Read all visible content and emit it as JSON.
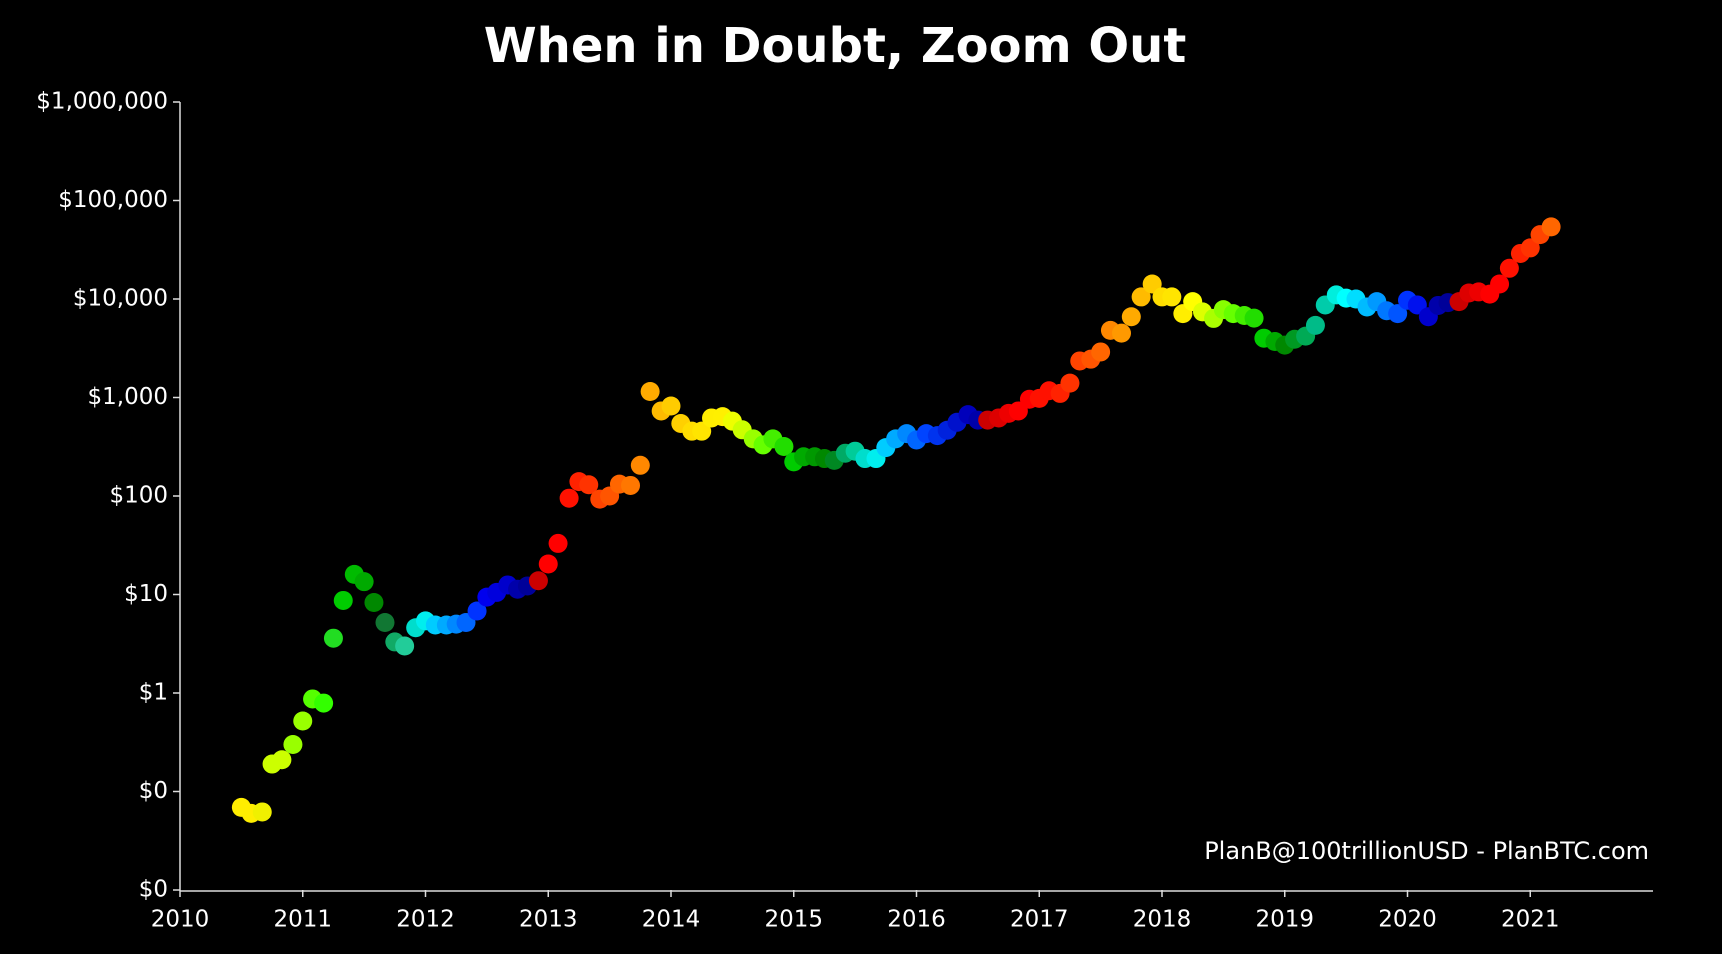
{
  "chart_data": {
    "type": "scatter",
    "title": "When in Doubt, Zoom Out",
    "annotation": "PlanB@100trillionUSD - PlanBTC.com",
    "log_y": true,
    "xlim": [
      2010,
      2022
    ],
    "ylim": [
      0.01,
      1000000
    ],
    "xticks": [
      2010,
      2011,
      2012,
      2013,
      2014,
      2015,
      2016,
      2017,
      2018,
      2019,
      2020,
      2021
    ],
    "yticks": [
      {
        "value": 0.01,
        "label": "$0"
      },
      {
        "value": 0.1,
        "label": "$0"
      },
      {
        "value": 1,
        "label": "$1"
      },
      {
        "value": 10,
        "label": "$10"
      },
      {
        "value": 100,
        "label": "$100"
      },
      {
        "value": 1000,
        "label": "$1,000"
      },
      {
        "value": 10000,
        "label": "$10,000"
      },
      {
        "value": 100000,
        "label": "$100,000"
      },
      {
        "value": 1000000,
        "label": "$1,000,000"
      }
    ],
    "x": [
      2010.5,
      2010.58,
      2010.67,
      2010.75,
      2010.83,
      2010.92,
      2011,
      2011.08,
      2011.17,
      2011.25,
      2011.33,
      2011.42,
      2011.5,
      2011.58,
      2011.67,
      2011.75,
      2011.83,
      2011.92,
      2012,
      2012.08,
      2012.17,
      2012.25,
      2012.33,
      2012.42,
      2012.5,
      2012.58,
      2012.67,
      2012.75,
      2012.83,
      2012.92,
      2013,
      2013.08,
      2013.17,
      2013.25,
      2013.33,
      2013.42,
      2013.5,
      2013.58,
      2013.67,
      2013.75,
      2013.83,
      2013.92,
      2014,
      2014.08,
      2014.17,
      2014.25,
      2014.33,
      2014.42,
      2014.5,
      2014.58,
      2014.67,
      2014.75,
      2014.83,
      2014.92,
      2015,
      2015.08,
      2015.17,
      2015.25,
      2015.33,
      2015.42,
      2015.5,
      2015.58,
      2015.67,
      2015.75,
      2015.83,
      2015.92,
      2016,
      2016.08,
      2016.17,
      2016.25,
      2016.33,
      2016.42,
      2016.5,
      2016.58,
      2016.67,
      2016.75,
      2016.83,
      2016.92,
      2017,
      2017.08,
      2017.17,
      2017.25,
      2017.33,
      2017.42,
      2017.5,
      2017.58,
      2017.67,
      2017.75,
      2017.83,
      2017.92,
      2018,
      2018.08,
      2018.17,
      2018.25,
      2018.33,
      2018.42,
      2018.5,
      2018.58,
      2018.67,
      2018.75,
      2018.83,
      2018.92,
      2019,
      2019.08,
      2019.17,
      2019.25,
      2019.33,
      2019.42,
      2019.5,
      2019.58,
      2019.67,
      2019.75,
      2019.83,
      2019.92,
      2020,
      2020.08,
      2020.17,
      2020.25,
      2020.33,
      2020.42,
      2020.5,
      2020.58,
      2020.67,
      2020.75,
      2020.83,
      2020.92,
      2021,
      2021.08,
      2021.17
    ],
    "values": [
      0.069,
      0.06,
      0.062,
      0.19,
      0.21,
      0.3,
      0.52,
      0.87,
      0.79,
      3.6,
      8.7,
      16,
      13.5,
      8.3,
      5.2,
      3.3,
      3.0,
      4.6,
      5.4,
      4.9,
      4.9,
      5.0,
      5.2,
      6.8,
      9.4,
      10.5,
      12.5,
      11.3,
      12.2,
      13.8,
      20.4,
      33,
      95,
      140,
      130,
      93,
      100,
      132,
      128,
      205,
      1150,
      730,
      820,
      545,
      455,
      455,
      620,
      640,
      575,
      470,
      380,
      330,
      380,
      318,
      222,
      250,
      250,
      240,
      230,
      272,
      285,
      240,
      240,
      310,
      380,
      430,
      370,
      430,
      410,
      465,
      560,
      670,
      590,
      590,
      620,
      690,
      730,
      960,
      980,
      1170,
      1100,
      1400,
      2350,
      2450,
      2900,
      4800,
      4500,
      6600,
      10500,
      14200,
      10500,
      10500,
      7100,
      9400,
      7400,
      6350,
      7800,
      7100,
      6800,
      6400,
      4000,
      3700,
      3400,
      3900,
      4200,
      5400,
      8700,
      11000,
      10200,
      10000,
      8300,
      9400,
      7600,
      7100,
      9700,
      8700,
      6600,
      8600,
      9200,
      9400,
      11500,
      11800,
      11200,
      14200,
      20500,
      29000,
      33000,
      45000,
      54000
    ],
    "colors": [
      "#ffee00",
      "#ffee00",
      "#f0f000",
      "#ccff00",
      "#ccff00",
      "#99ff00",
      "#99ff00",
      "#55ff00",
      "#33ff00",
      "#22dd22",
      "#00cc00",
      "#00bb00",
      "#00aa00",
      "#008800",
      "#117733",
      "#11aa66",
      "#22cc99",
      "#00ddcc",
      "#00eeee",
      "#00ccff",
      "#00aaff",
      "#0088ff",
      "#0066ff",
      "#0033ff",
      "#0000ee",
      "#0000dd",
      "#0000cc",
      "#0000aa",
      "#000099",
      "#cc0000",
      "#ff0000",
      "#ff0000",
      "#ff1100",
      "#ff2200",
      "#ff3300",
      "#ff4400",
      "#ff5500",
      "#ff6600",
      "#ff7700",
      "#ff8800",
      "#ffaa00",
      "#ffbb00",
      "#ffcc00",
      "#ffd000",
      "#ffdd00",
      "#ffe500",
      "#ffee00",
      "#fff000",
      "#eeff00",
      "#ccff00",
      "#99ff00",
      "#66ff00",
      "#44ee00",
      "#22dd00",
      "#00cc00",
      "#00aa00",
      "#009900",
      "#008800",
      "#008822",
      "#00aa66",
      "#00cc99",
      "#00ddcc",
      "#00eeee",
      "#00ccff",
      "#00aaff",
      "#0088ff",
      "#0066ff",
      "#0044ff",
      "#0033ee",
      "#0022dd",
      "#0011cc",
      "#0000bb",
      "#0000aa",
      "#cc0000",
      "#dd0000",
      "#ee0000",
      "#ff0000",
      "#ff0000",
      "#ff1100",
      "#ff1100",
      "#ff2200",
      "#ff3300",
      "#ff4400",
      "#ff5500",
      "#ff6600",
      "#ff8800",
      "#ff9900",
      "#ffaa00",
      "#ffbb00",
      "#ffcc00",
      "#ffdd00",
      "#ffe500",
      "#ffee00",
      "#ffff00",
      "#ddff00",
      "#aaff00",
      "#88ff00",
      "#66ff00",
      "#44ee00",
      "#22dd00",
      "#00cc00",
      "#00aa00",
      "#008800",
      "#009922",
      "#00aa55",
      "#00bb88",
      "#00ccaa",
      "#00eedd",
      "#00ffff",
      "#00ddff",
      "#00bbff",
      "#0099ff",
      "#0077ff",
      "#0055ff",
      "#0033ff",
      "#0011ee",
      "#0000cc",
      "#0000aa",
      "#000099",
      "#cc0000",
      "#dd0000",
      "#ee0000",
      "#ff0000",
      "#ff0000",
      "#ff1100",
      "#ff2200",
      "#ff3300",
      "#ff4400",
      "#ff6600"
    ]
  }
}
